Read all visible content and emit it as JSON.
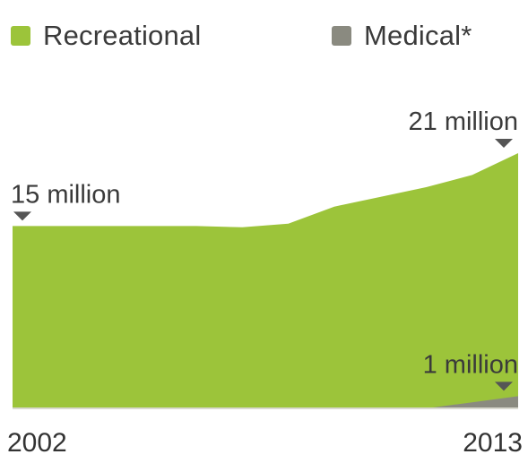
{
  "legend": {
    "recreational_label": "Recreational",
    "medical_label": "Medical*"
  },
  "colors": {
    "recreational": "#9cc43a",
    "medical": "#8a8a80",
    "marker": "#555555"
  },
  "chart_data": {
    "type": "area",
    "x": [
      2002,
      2003,
      2004,
      2005,
      2006,
      2007,
      2008,
      2009,
      2010,
      2011,
      2012,
      2013
    ],
    "xlabel": "",
    "ylabel": "",
    "ylim": [
      0,
      21
    ],
    "series": [
      {
        "name": "Recreational",
        "values": [
          15,
          15,
          15,
          15,
          15,
          14.9,
          15.2,
          16.6,
          17.4,
          18.2,
          19.2,
          21
        ]
      },
      {
        "name": "Medical*",
        "values": [
          0,
          0,
          0,
          0,
          0,
          0,
          0,
          0,
          0,
          0,
          0.5,
          1
        ]
      }
    ],
    "tick_labels": [
      "2002",
      "2013"
    ],
    "annotations": [
      {
        "text": "15 million",
        "x": 2002,
        "value": 15
      },
      {
        "text": "21 million",
        "x": 2013,
        "value": 21
      },
      {
        "text": "1 million",
        "x": 2013,
        "value": 1
      }
    ],
    "grid": false,
    "legend_position": "top"
  }
}
